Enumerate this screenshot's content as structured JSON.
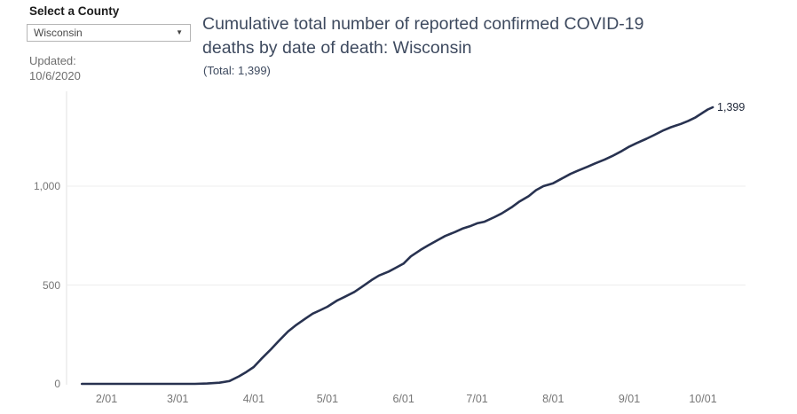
{
  "filter_panel": {
    "label": "Select a County",
    "dropdown_value": "Wisconsin",
    "updated_label": "Updated:",
    "updated_date": "10/6/2020"
  },
  "header": {
    "title": "Cumulative total number of reported confirmed COVID-19 deaths by date of death: Wisconsin",
    "subtitle": "(Total: 1,399)"
  },
  "chart_data": {
    "type": "line",
    "title": "Cumulative total number of reported confirmed COVID-19 deaths by date of death: Wisconsin",
    "total": 1399,
    "end_label": "1,399",
    "xlabel": "",
    "ylabel": "",
    "grid": true,
    "legend": "none",
    "ylim": [
      0,
      1480
    ],
    "x_range": [
      "1/22",
      "10/05"
    ],
    "x_ticks": [
      "2/01",
      "3/01",
      "4/01",
      "5/01",
      "6/01",
      "7/01",
      "8/01",
      "9/01",
      "10/01"
    ],
    "y_ticks": [
      {
        "value": 0,
        "label": "0"
      },
      {
        "value": 500,
        "label": "500"
      },
      {
        "value": 1000,
        "label": "1,000"
      }
    ],
    "line_color": "#283250",
    "grid_color": "#ededed",
    "axis_color": "#e2e2e2",
    "series": [
      {
        "name": "Cumulative confirmed COVID-19 deaths",
        "points": [
          [
            "1/22",
            0
          ],
          [
            "2/01",
            0
          ],
          [
            "2/15",
            0
          ],
          [
            "3/01",
            0
          ],
          [
            "3/08",
            0
          ],
          [
            "3/13",
            2
          ],
          [
            "3/18",
            6
          ],
          [
            "3/22",
            14
          ],
          [
            "3/26",
            38
          ],
          [
            "3/29",
            60
          ],
          [
            "4/01",
            85
          ],
          [
            "4/04",
            125
          ],
          [
            "4/08",
            175
          ],
          [
            "4/11",
            215
          ],
          [
            "4/15",
            265
          ],
          [
            "4/18",
            295
          ],
          [
            "4/22",
            330
          ],
          [
            "4/25",
            355
          ],
          [
            "4/28",
            372
          ],
          [
            "5/01",
            390
          ],
          [
            "5/05",
            422
          ],
          [
            "5/08",
            440
          ],
          [
            "5/12",
            465
          ],
          [
            "5/15",
            490
          ],
          [
            "5/19",
            525
          ],
          [
            "5/22",
            548
          ],
          [
            "5/26",
            568
          ],
          [
            "5/29",
            588
          ],
          [
            "6/01",
            608
          ],
          [
            "6/04",
            645
          ],
          [
            "6/08",
            678
          ],
          [
            "6/11",
            700
          ],
          [
            "6/15",
            728
          ],
          [
            "6/18",
            748
          ],
          [
            "6/22",
            768
          ],
          [
            "6/25",
            785
          ],
          [
            "6/28",
            797
          ],
          [
            "7/01",
            812
          ],
          [
            "7/04",
            820
          ],
          [
            "7/08",
            843
          ],
          [
            "7/11",
            862
          ],
          [
            "7/15",
            893
          ],
          [
            "7/18",
            920
          ],
          [
            "7/22",
            950
          ],
          [
            "7/25",
            980
          ],
          [
            "7/28",
            1000
          ],
          [
            "8/01",
            1015
          ],
          [
            "8/04",
            1035
          ],
          [
            "8/08",
            1062
          ],
          [
            "8/11",
            1078
          ],
          [
            "8/15",
            1098
          ],
          [
            "8/18",
            1115
          ],
          [
            "8/22",
            1135
          ],
          [
            "8/25",
            1152
          ],
          [
            "8/29",
            1178
          ],
          [
            "9/01",
            1200
          ],
          [
            "9/04",
            1218
          ],
          [
            "9/08",
            1240
          ],
          [
            "9/11",
            1258
          ],
          [
            "9/15",
            1283
          ],
          [
            "9/18",
            1298
          ],
          [
            "9/22",
            1315
          ],
          [
            "9/25",
            1330
          ],
          [
            "9/28",
            1348
          ],
          [
            "10/01",
            1372
          ],
          [
            "10/03",
            1388
          ],
          [
            "10/05",
            1399
          ]
        ]
      }
    ]
  }
}
